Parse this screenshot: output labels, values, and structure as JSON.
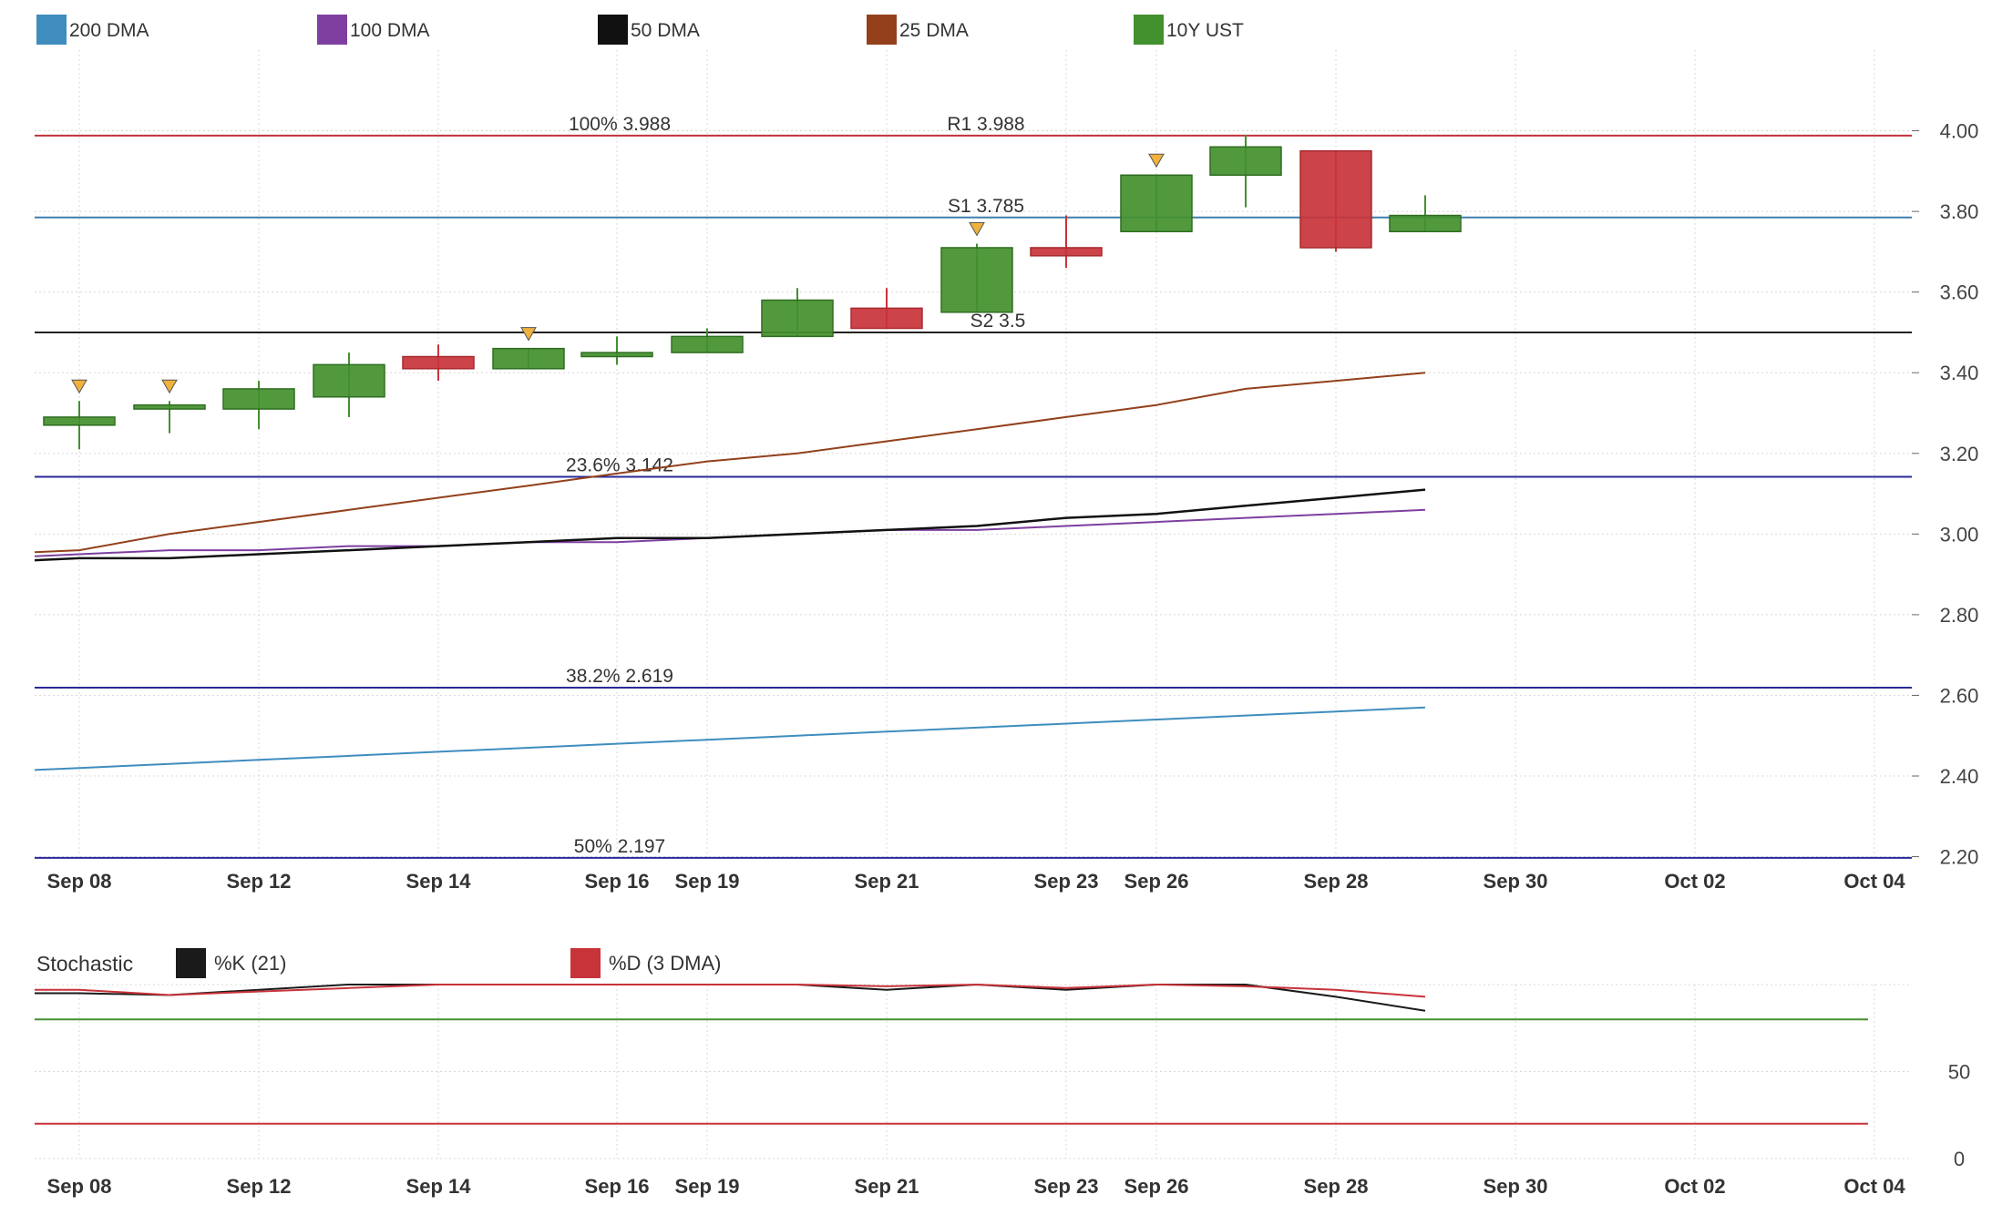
{
  "chart_data": [
    {
      "type": "candlestick",
      "legend": [
        {
          "name": "200 DMA",
          "color": "#3f8dbf"
        },
        {
          "name": "100 DMA",
          "color": "#7e3fa0"
        },
        {
          "name": "50 DMA",
          "color": "#111111"
        },
        {
          "name": "25 DMA",
          "color": "#93401b"
        },
        {
          "name": "10Y UST",
          "color": "#43902e"
        }
      ],
      "x_ticks": [
        "Sep 08",
        "Sep 12",
        "Sep 14",
        "Sep 16",
        "Sep 19",
        "Sep 21",
        "Sep 23",
        "Sep 26",
        "Sep 28",
        "Sep 30",
        "Oct 02",
        "Oct 04"
      ],
      "y_ticks": [
        "2.20",
        "2.40",
        "2.60",
        "2.80",
        "3.00",
        "3.20",
        "3.40",
        "3.60",
        "3.80",
        "4.00"
      ],
      "ylim": [
        2.19,
        4.2
      ],
      "grid": true,
      "candles": [
        {
          "open": 3.27,
          "close": 3.29,
          "high": 3.33,
          "low": 3.21,
          "marker": true
        },
        {
          "open": 3.31,
          "close": 3.32,
          "high": 3.33,
          "low": 3.25,
          "marker": true
        },
        {
          "open": 3.31,
          "close": 3.36,
          "high": 3.38,
          "low": 3.26,
          "marker": false
        },
        {
          "open": 3.34,
          "close": 3.42,
          "high": 3.45,
          "low": 3.29,
          "marker": false
        },
        {
          "open": 3.44,
          "close": 3.41,
          "high": 3.47,
          "low": 3.38,
          "marker": false
        },
        {
          "open": 3.41,
          "close": 3.46,
          "high": 3.46,
          "low": 3.41,
          "marker": true
        },
        {
          "open": 3.44,
          "close": 3.45,
          "high": 3.49,
          "low": 3.42,
          "marker": false
        },
        {
          "open": 3.45,
          "close": 3.49,
          "high": 3.51,
          "low": 3.45,
          "marker": false
        },
        {
          "open": 3.49,
          "close": 3.58,
          "high": 3.61,
          "low": 3.49,
          "marker": false
        },
        {
          "open": 3.56,
          "close": 3.51,
          "high": 3.61,
          "low": 3.51,
          "marker": false
        },
        {
          "open": 3.55,
          "close": 3.71,
          "high": 3.72,
          "low": 3.55,
          "marker": true
        },
        {
          "open": 3.71,
          "close": 3.69,
          "high": 3.79,
          "low": 3.66,
          "marker": false
        },
        {
          "open": 3.75,
          "close": 3.89,
          "high": 3.89,
          "low": 3.75,
          "marker": true
        },
        {
          "open": 3.89,
          "close": 3.96,
          "high": 3.99,
          "low": 3.81,
          "marker": false
        },
        {
          "open": 3.95,
          "close": 3.71,
          "high": 3.95,
          "low": 3.7,
          "marker": false
        },
        {
          "open": 3.75,
          "close": 3.79,
          "high": 3.84,
          "low": 3.75,
          "marker": false
        }
      ],
      "moving_averages": [
        {
          "name": "200 DMA",
          "values": [
            2.42,
            2.43,
            2.44,
            2.45,
            2.46,
            2.47,
            2.48,
            2.49,
            2.5,
            2.51,
            2.52,
            2.53,
            2.54,
            2.55,
            2.56,
            2.57
          ]
        },
        {
          "name": "100 DMA",
          "values": [
            2.95,
            2.96,
            2.96,
            2.97,
            2.97,
            2.98,
            2.98,
            2.99,
            3.0,
            3.01,
            3.01,
            3.02,
            3.03,
            3.04,
            3.05,
            3.06
          ]
        },
        {
          "name": "50 DMA",
          "values": [
            2.94,
            2.94,
            2.95,
            2.96,
            2.97,
            2.98,
            2.99,
            2.99,
            3.0,
            3.01,
            3.02,
            3.04,
            3.05,
            3.07,
            3.09,
            3.11
          ]
        },
        {
          "name": "25 DMA",
          "values": [
            2.96,
            3.0,
            3.03,
            3.06,
            3.09,
            3.12,
            3.15,
            3.18,
            3.2,
            3.23,
            3.26,
            3.29,
            3.32,
            3.36,
            3.38,
            3.4
          ]
        }
      ],
      "levels": [
        {
          "value": 3.988,
          "color": "#c0323c",
          "labels": [
            "100% 3.988",
            "R1 3.988"
          ]
        },
        {
          "value": 3.785,
          "color": "#3f7fae",
          "labels": [
            "S1 3.785"
          ]
        },
        {
          "value": 3.5,
          "color": "#222222",
          "labels": [
            "S2 3.5"
          ]
        },
        {
          "value": 3.142,
          "color": "#2a2a9a",
          "labels": [
            "23.6% 3.142"
          ]
        },
        {
          "value": 2.619,
          "color": "#2a2a9a",
          "labels": [
            "38.2% 2.619"
          ]
        },
        {
          "value": 2.197,
          "color": "#2a2a9a",
          "labels": [
            "50% 2.197"
          ]
        }
      ],
      "up_color": "#43902e",
      "down_color": "#c8333a",
      "marker_color": "#f0b23c"
    },
    {
      "type": "line",
      "title": "Stochastic",
      "legend": [
        {
          "name": "%K (21)",
          "color": "#1a1a1a"
        },
        {
          "name": "%D (3 DMA)",
          "color": "#c8333a"
        }
      ],
      "x_ticks": [
        "Sep 08",
        "Sep 12",
        "Sep 14",
        "Sep 16",
        "Sep 19",
        "Sep 21",
        "Sep 23",
        "Sep 26",
        "Sep 28",
        "Sep 30",
        "Oct 02",
        "Oct 04"
      ],
      "y_ticks": [
        "0",
        "50"
      ],
      "ylim": [
        0,
        100
      ],
      "series": [
        {
          "name": "%K (21)",
          "values": [
            95,
            94,
            97,
            100,
            100,
            100,
            100,
            100,
            100,
            97,
            100,
            97,
            100,
            100,
            93,
            85
          ]
        },
        {
          "name": "%D (3 DMA)",
          "values": [
            97,
            94,
            96,
            98,
            100,
            100,
            100,
            100,
            100,
            99,
            100,
            98,
            100,
            99,
            97,
            93
          ]
        }
      ],
      "overbought": 80,
      "oversold": 20,
      "overbought_color": "#43902e",
      "oversold_color": "#c8333a"
    }
  ]
}
